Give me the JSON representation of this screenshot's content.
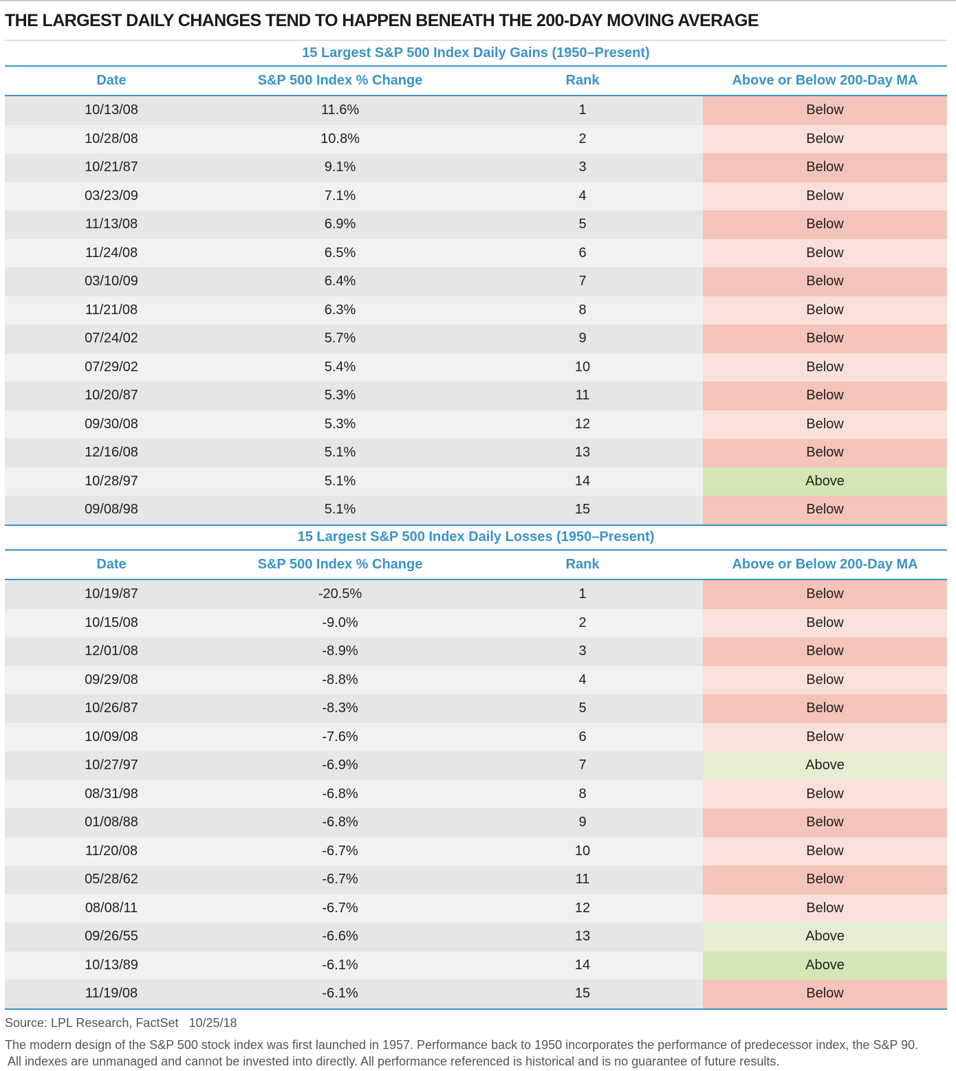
{
  "title": "THE LARGEST DAILY CHANGES TEND TO HAPPEN BENEATH THE 200-DAY MOVING AVERAGE",
  "colors": {
    "accent": "#3a93c8",
    "below_dark": "#f4c3b9",
    "below_light": "#fae0da",
    "above_dark": "#d4e6b6",
    "above_light": "#e4eed2"
  },
  "chart_data": {
    "type": "table",
    "columns": [
      "Date",
      "S&P 500 Index % Change",
      "Rank",
      "Above or Below 200-Day MA"
    ],
    "sections": [
      {
        "title": "15 Largest S&P 500 Index Daily Gains (1950–Present)",
        "rows": [
          [
            "10/13/08",
            "11.6%",
            "1",
            "Below"
          ],
          [
            "10/28/08",
            "10.8%",
            "2",
            "Below"
          ],
          [
            "10/21/87",
            "9.1%",
            "3",
            "Below"
          ],
          [
            "03/23/09",
            "7.1%",
            "4",
            "Below"
          ],
          [
            "11/13/08",
            "6.9%",
            "5",
            "Below"
          ],
          [
            "11/24/08",
            "6.5%",
            "6",
            "Below"
          ],
          [
            "03/10/09",
            "6.4%",
            "7",
            "Below"
          ],
          [
            "11/21/08",
            "6.3%",
            "8",
            "Below"
          ],
          [
            "07/24/02",
            "5.7%",
            "9",
            "Below"
          ],
          [
            "07/29/02",
            "5.4%",
            "10",
            "Below"
          ],
          [
            "10/20/87",
            "5.3%",
            "11",
            "Below"
          ],
          [
            "09/30/08",
            "5.3%",
            "12",
            "Below"
          ],
          [
            "12/16/08",
            "5.1%",
            "13",
            "Below"
          ],
          [
            "10/28/97",
            "5.1%",
            "14",
            "Above"
          ],
          [
            "09/08/98",
            "5.1%",
            "15",
            "Below"
          ]
        ]
      },
      {
        "title": "15 Largest S&P 500 Index Daily Losses (1950–Present)",
        "rows": [
          [
            "10/19/87",
            "-20.5%",
            "1",
            "Below"
          ],
          [
            "10/15/08",
            "-9.0%",
            "2",
            "Below"
          ],
          [
            "12/01/08",
            "-8.9%",
            "3",
            "Below"
          ],
          [
            "09/29/08",
            "-8.8%",
            "4",
            "Below"
          ],
          [
            "10/26/87",
            "-8.3%",
            "5",
            "Below"
          ],
          [
            "10/09/08",
            "-7.6%",
            "6",
            "Below"
          ],
          [
            "10/27/97",
            "-6.9%",
            "7",
            "Above"
          ],
          [
            "08/31/98",
            "-6.8%",
            "8",
            "Below"
          ],
          [
            "01/08/88",
            "-6.8%",
            "9",
            "Below"
          ],
          [
            "11/20/08",
            "-6.7%",
            "10",
            "Below"
          ],
          [
            "05/28/62",
            "-6.7%",
            "11",
            "Below"
          ],
          [
            "08/08/11",
            "-6.7%",
            "12",
            "Below"
          ],
          [
            "09/26/55",
            "-6.6%",
            "13",
            "Above"
          ],
          [
            "10/13/89",
            "-6.1%",
            "14",
            "Above"
          ],
          [
            "11/19/08",
            "-6.1%",
            "15",
            "Below"
          ]
        ]
      }
    ]
  },
  "footer": {
    "source": "Source: LPL Research, FactSet   10/25/18",
    "note_line1": "The modern design of the S&P 500 stock index was first launched in 1957. Performance back to 1950 incorporates the performance of predecessor index, the S&P 90.",
    "note_line2": " All indexes are unmanaged and cannot be invested into directly. All performance referenced is historical and is no guarantee of future results."
  }
}
